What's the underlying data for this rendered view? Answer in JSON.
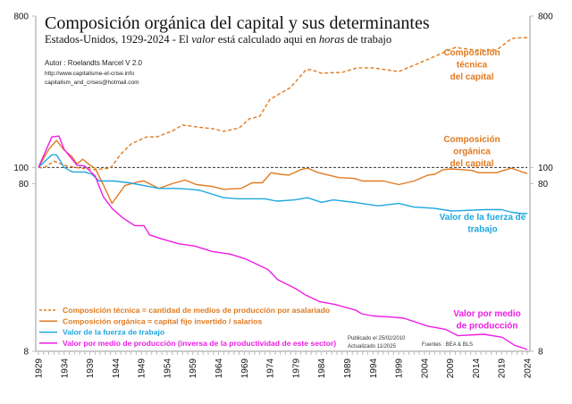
{
  "chart_data": {
    "type": "line",
    "title": "Composición orgánica del capital y sus determinantes",
    "subtitle_parts": [
      {
        "text": "Estados-Unidos, 1929-2024  -  El ",
        "italic": false
      },
      {
        "text": "valor",
        "italic": true
      },
      {
        "text": " está calculado aqui en ",
        "italic": false
      },
      {
        "text": "horas",
        "italic": true
      },
      {
        "text": " de trabajo",
        "italic": false
      }
    ],
    "author": "Autor : Roelandts Marcel  V 2.0",
    "website": "http://www.capitalisme-et-crise.info",
    "email": "capitalism_and_crises@hotmail.com",
    "published": "Publicado el 25/02/2010",
    "updated": "Actualizado 11/2025",
    "sources": "Fuentes : BEA & BLS",
    "y_scale": "log",
    "ylim": [
      8,
      800
    ],
    "y_ticks": [
      "800",
      "100",
      "80",
      "8"
    ],
    "y_tick_values": [
      800,
      100,
      80,
      8
    ],
    "x_range": [
      1929,
      2024
    ],
    "x_ticks": [
      "1929",
      "1934",
      "1939",
      "1944",
      "1949",
      "1954",
      "1959",
      "1964",
      "1969",
      "1974",
      "1979",
      "1984",
      "1989",
      "1994",
      "1999",
      "2004",
      "2009",
      "2014",
      "2019",
      "2024"
    ],
    "reference_line": {
      "value": 100,
      "style": "dashed",
      "color": "#333333"
    },
    "grid": false,
    "legend_position": "bottom-left",
    "series": [
      {
        "name": "Composición técnica  =  cantidad de medios de producción por asalariado",
        "label_lines": [
          "Composición",
          "técnica",
          "del capital"
        ],
        "color": "#e07a1f",
        "dashed": true,
        "x": [
          1929,
          1930,
          1932,
          1934,
          1937,
          1940,
          1943,
          1945,
          1947,
          1950,
          1952,
          1955,
          1957,
          1960,
          1963,
          1965,
          1968,
          1970,
          1972,
          1974,
          1978,
          1981,
          1982,
          1984,
          1988,
          1991,
          1994,
          1999,
          2002,
          2006,
          2010,
          2014,
          2018,
          2021,
          2024
        ],
        "y": [
          100,
          99,
          109,
          103,
          99,
          97,
          99,
          120,
          138,
          152,
          152,
          165,
          179,
          174,
          170,
          164,
          172,
          195,
          202,
          255,
          300,
          383,
          383,
          365,
          369,
          393,
          393,
          373,
          407,
          460,
          520,
          501,
          501,
          589,
          596
        ]
      },
      {
        "name": "Composición orgánica  =  capital fijo invertido / salarios",
        "label_lines": [
          "Composición",
          "orgánica",
          "del capital"
        ],
        "color": "#e07a1f",
        "dashed": false,
        "x": [
          1929,
          1931,
          1932.5,
          1934,
          1935.5,
          1936.5,
          1937.6,
          1939,
          1940,
          1941.6,
          1943.3,
          1945.8,
          1948.4,
          1949.5,
          1952.4,
          1955,
          1957.5,
          1959.7,
          1962.7,
          1965,
          1968.4,
          1970.5,
          1972.5,
          1974.2,
          1976,
          1977.7,
          1980,
          1981.3,
          1983.4,
          1987.4,
          1990.3,
          1992,
          1996,
          1999,
          2002,
          2004.7,
          2006,
          2007.6,
          2009.3,
          2013.3,
          2014.5,
          2018,
          2020.9,
          2023,
          2024
        ],
        "y": [
          100,
          128,
          145,
          127,
          116,
          105,
          112,
          103,
          99,
          79,
          61,
          78,
          82,
          83,
          75,
          80,
          84,
          79,
          77,
          74,
          75,
          81,
          81,
          93,
          91,
          90,
          97,
          99,
          93,
          87,
          86,
          83,
          83,
          79,
          83,
          90,
          91,
          97,
          98,
          96,
          93,
          93,
          99,
          94,
          92
        ]
      },
      {
        "name": "Valor de la fuerza de trabajo",
        "label_lines": [
          "Valor de la fuerza de",
          "trabajo"
        ],
        "color": "#1fa7de",
        "dashed": false,
        "x": [
          1929,
          1931.6,
          1932.5,
          1934,
          1935.6,
          1938,
          1939.4,
          1940.8,
          1943.7,
          1946.6,
          1949.5,
          1952.4,
          1955.8,
          1958.7,
          1960.4,
          1965,
          1967.8,
          1973,
          1975.3,
          1978.7,
          1981.3,
          1984,
          1986.3,
          1990.3,
          1995,
          1999,
          2002,
          2005.9,
          2009.3,
          2016,
          2019,
          2021,
          2023,
          2024
        ],
        "y": [
          100,
          119,
          119,
          100,
          94,
          94,
          91,
          83,
          83,
          81,
          78,
          75,
          75,
          74,
          73,
          66,
          65,
          65,
          63,
          64,
          66,
          62,
          64,
          62,
          59,
          61,
          58,
          57,
          55,
          56,
          56,
          54,
          53,
          53
        ]
      },
      {
        "name": "Valor por medio de producción (inversa de la productividad de este sector)",
        "label_lines": [
          "Valor por medio",
          "de producción"
        ],
        "color": "#ee1ee6",
        "dashed": false,
        "x": [
          1929,
          1931.6,
          1933,
          1934,
          1936.5,
          1938,
          1940,
          1941.6,
          1943.3,
          1945.4,
          1947.7,
          1949.5,
          1950.6,
          1952.9,
          1956.3,
          1959.3,
          1962.8,
          1966.3,
          1969.4,
          1973.6,
          1975.5,
          1979,
          1980.8,
          1983.7,
          1986.7,
          1990.6,
          1991.8,
          1994,
          1997.5,
          2000,
          2004.7,
          2008.2,
          2010.5,
          2015.6,
          2019.1,
          2021.5,
          2024
        ],
        "y": [
          100,
          152,
          154,
          128,
          103,
          102,
          89,
          67,
          57,
          50,
          45,
          45,
          39.6,
          37.5,
          35,
          34,
          31.5,
          30.4,
          28.3,
          24.6,
          21.4,
          18.9,
          17.4,
          15.8,
          15.2,
          14.1,
          13.4,
          13.0,
          12.8,
          12.6,
          11.3,
          10.8,
          9.9,
          10.1,
          9.7,
          8.7,
          8.2
        ]
      }
    ]
  }
}
